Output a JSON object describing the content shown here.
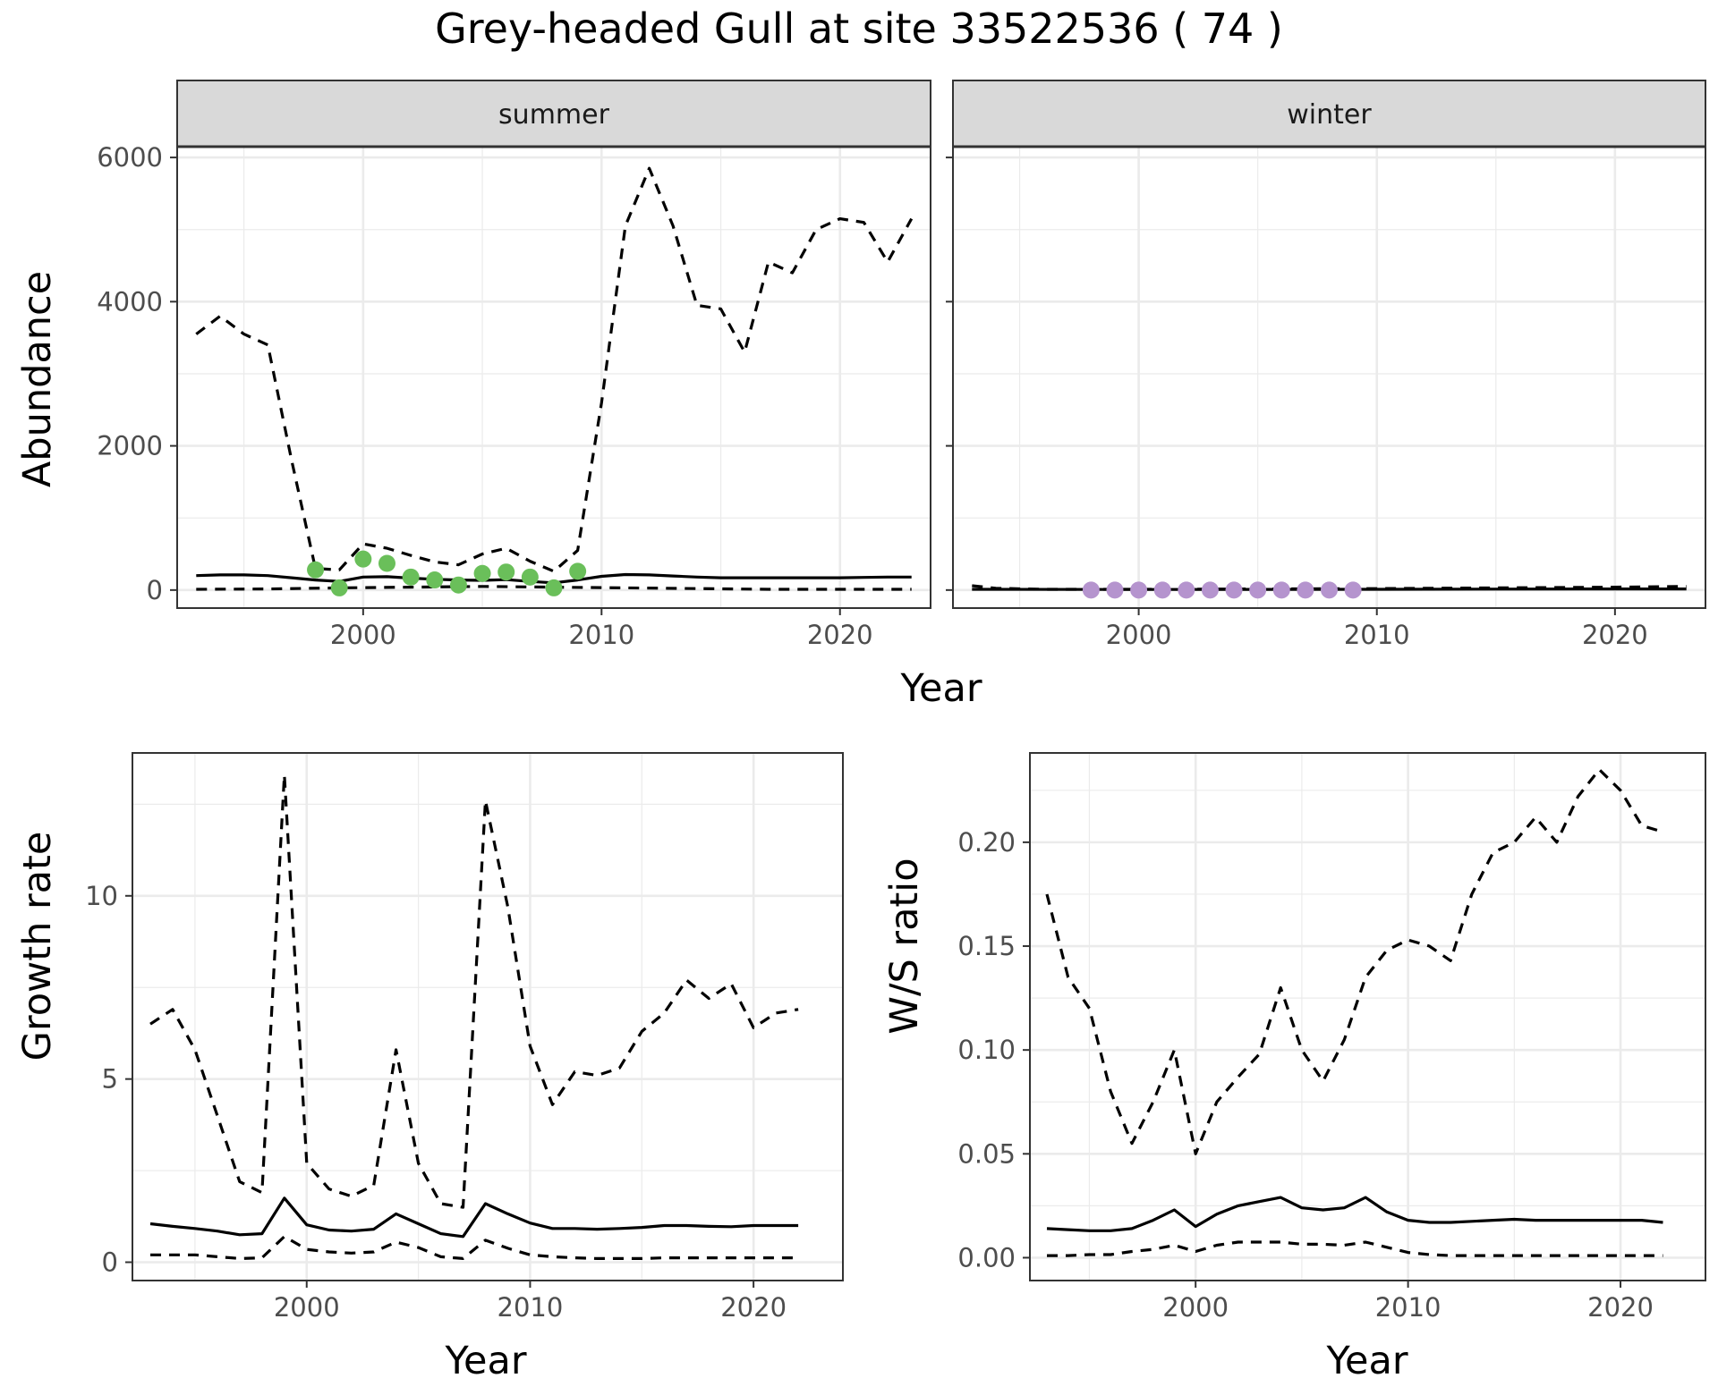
{
  "title": "Grey-headed Gull at site 33522536 ( 74 )",
  "colors": {
    "summer_points": "#6abf5a",
    "winter_points": "#b594ce",
    "line": "#000000",
    "strip_fill": "#d9d9d9",
    "grid": "#ebebeb"
  },
  "chart_data": [
    {
      "type": "line",
      "panel": "summer",
      "strip_label": "summer",
      "xlabel": "Year",
      "ylabel": "Abundance",
      "xlim": [
        1992.2,
        2023.8
      ],
      "ylim": [
        -250,
        6150
      ],
      "xticks": [
        2000,
        2010,
        2020
      ],
      "yticks": [
        0,
        2000,
        4000,
        6000
      ],
      "ytick_labels": [
        "0",
        "2000",
        "4000",
        "6000"
      ],
      "series": [
        {
          "style": "solid",
          "x": [
            1993,
            1994,
            1995,
            1996,
            1997,
            1998,
            1999,
            2000,
            2001,
            2002,
            2003,
            2004,
            2005,
            2006,
            2007,
            2008,
            2009,
            2010,
            2011,
            2012,
            2013,
            2014,
            2015,
            2016,
            2017,
            2018,
            2019,
            2020,
            2021,
            2022,
            2023
          ],
          "y": [
            200,
            210,
            210,
            200,
            170,
            140,
            120,
            180,
            185,
            165,
            150,
            140,
            135,
            145,
            120,
            100,
            140,
            190,
            215,
            210,
            195,
            180,
            170,
            170,
            170,
            170,
            170,
            170,
            175,
            180,
            180
          ]
        },
        {
          "style": "dashed",
          "x": [
            1993,
            1994,
            1995,
            1996,
            1997,
            1998,
            1999,
            2000,
            2001,
            2002,
            2003,
            2004,
            2005,
            2006,
            2007,
            2008,
            2009,
            2010,
            2011,
            2012,
            2013,
            2014,
            2015,
            2016,
            2017,
            2018,
            2019,
            2020,
            2021,
            2022,
            2023
          ],
          "y": [
            3550,
            3800,
            3550,
            3400,
            1800,
            300,
            280,
            640,
            580,
            480,
            390,
            350,
            500,
            580,
            400,
            260,
            550,
            2600,
            5050,
            5850,
            5050,
            3950,
            3900,
            3300,
            4550,
            4400,
            5000,
            5150,
            5100,
            4550,
            5150
          ]
        },
        {
          "style": "dashed",
          "x": [
            1993,
            1996,
            1999,
            2002,
            2005,
            2008,
            2011,
            2014,
            2017,
            2020,
            2023
          ],
          "y": [
            10,
            15,
            30,
            40,
            50,
            40,
            30,
            20,
            10,
            10,
            10
          ]
        }
      ],
      "points": {
        "x": [
          1998,
          1999,
          2000,
          2001,
          2002,
          2003,
          2004,
          2005,
          2006,
          2007,
          2008,
          2009
        ],
        "y": [
          280,
          30,
          430,
          370,
          180,
          140,
          70,
          230,
          250,
          180,
          30,
          260
        ]
      }
    },
    {
      "type": "line",
      "panel": "winter",
      "strip_label": "winter",
      "xlabel": "Year",
      "ylabel": "Abundance",
      "xlim": [
        1992.2,
        2023.8
      ],
      "ylim": [
        -250,
        6150
      ],
      "xticks": [
        2000,
        2010,
        2020
      ],
      "series": [
        {
          "style": "solid",
          "x": [
            1993,
            2000,
            2010,
            2020,
            2023
          ],
          "y": [
            10,
            8,
            10,
            15,
            15
          ]
        },
        {
          "style": "dashed",
          "x": [
            1993,
            1994,
            1996,
            2000,
            2005,
            2010,
            2015,
            2020,
            2023
          ],
          "y": [
            60,
            25,
            10,
            10,
            15,
            20,
            30,
            40,
            50
          ]
        }
      ],
      "points": {
        "x": [
          1998,
          1999,
          2000,
          2001,
          2002,
          2003,
          2004,
          2005,
          2006,
          2007,
          2008,
          2009
        ],
        "y": [
          0,
          0,
          0,
          0,
          0,
          0,
          0,
          0,
          0,
          0,
          0,
          0
        ]
      }
    },
    {
      "type": "line",
      "panel": "growth",
      "xlabel": "Year",
      "ylabel": "Growth rate",
      "xlim": [
        1992.2,
        2024.0
      ],
      "ylim": [
        -0.5,
        13.9
      ],
      "xticks": [
        2000,
        2010,
        2020
      ],
      "yticks": [
        0,
        5,
        10
      ],
      "ytick_labels": [
        "0",
        "5",
        "10"
      ],
      "series": [
        {
          "style": "solid",
          "x": [
            1993,
            1994,
            1995,
            1996,
            1997,
            1998,
            1999,
            2000,
            2001,
            2002,
            2003,
            2004,
            2005,
            2006,
            2007,
            2008,
            2009,
            2010,
            2011,
            2012,
            2013,
            2014,
            2015,
            2016,
            2017,
            2018,
            2019,
            2020,
            2021,
            2022
          ],
          "y": [
            1.05,
            0.98,
            0.92,
            0.85,
            0.75,
            0.78,
            1.75,
            1.02,
            0.88,
            0.85,
            0.9,
            1.32,
            1.05,
            0.78,
            0.7,
            1.6,
            1.32,
            1.07,
            0.92,
            0.92,
            0.9,
            0.92,
            0.95,
            1.0,
            1.0,
            0.98,
            0.97,
            1.0,
            1.0,
            1.0
          ]
        },
        {
          "style": "dashed",
          "x": [
            1993,
            1994,
            1995,
            1996,
            1997,
            1998,
            1999,
            2000,
            2001,
            2002,
            2003,
            2004,
            2005,
            2006,
            2007,
            2008,
            2009,
            2010,
            2011,
            2012,
            2013,
            2014,
            2015,
            2016,
            2017,
            2018,
            2019,
            2020,
            2021,
            2022
          ],
          "y": [
            6.5,
            6.9,
            5.8,
            4.0,
            2.2,
            1.9,
            13.3,
            2.7,
            2.0,
            1.8,
            2.1,
            5.8,
            2.7,
            1.6,
            1.5,
            12.6,
            9.7,
            5.9,
            4.3,
            5.2,
            5.1,
            5.3,
            6.3,
            6.8,
            7.7,
            7.2,
            7.6,
            6.4,
            6.8,
            6.9
          ]
        },
        {
          "style": "dashed",
          "x": [
            1993,
            1994,
            1995,
            1996,
            1997,
            1998,
            1999,
            2000,
            2001,
            2002,
            2003,
            2004,
            2005,
            2006,
            2007,
            2008,
            2009,
            2010,
            2011,
            2012,
            2013,
            2014,
            2015,
            2016,
            2017,
            2018,
            2019,
            2020,
            2021,
            2022
          ],
          "y": [
            0.2,
            0.2,
            0.2,
            0.15,
            0.1,
            0.12,
            0.7,
            0.35,
            0.28,
            0.25,
            0.28,
            0.55,
            0.4,
            0.15,
            0.1,
            0.6,
            0.38,
            0.2,
            0.15,
            0.12,
            0.1,
            0.1,
            0.1,
            0.12,
            0.12,
            0.12,
            0.12,
            0.12,
            0.12,
            0.12
          ]
        }
      ]
    },
    {
      "type": "line",
      "panel": "ratio",
      "xlabel": "Year",
      "ylabel": "W/S ratio",
      "xlim": [
        1992.2,
        2024.0
      ],
      "ylim": [
        -0.011,
        0.243
      ],
      "xticks": [
        2000,
        2010,
        2020
      ],
      "yticks": [
        0.0,
        0.05,
        0.1,
        0.15,
        0.2
      ],
      "ytick_labels": [
        "0.00",
        "0.05",
        "0.10",
        "0.15",
        "0.20"
      ],
      "series": [
        {
          "style": "solid",
          "x": [
            1993,
            1994,
            1995,
            1996,
            1997,
            1998,
            1999,
            2000,
            2001,
            2002,
            2003,
            2004,
            2005,
            2006,
            2007,
            2008,
            2009,
            2010,
            2011,
            2012,
            2013,
            2014,
            2015,
            2016,
            2017,
            2018,
            2019,
            2020,
            2021,
            2022
          ],
          "y": [
            0.014,
            0.0135,
            0.013,
            0.013,
            0.014,
            0.018,
            0.023,
            0.015,
            0.021,
            0.025,
            0.027,
            0.029,
            0.024,
            0.023,
            0.024,
            0.029,
            0.022,
            0.018,
            0.017,
            0.017,
            0.0175,
            0.018,
            0.0185,
            0.018,
            0.018,
            0.018,
            0.018,
            0.018,
            0.018,
            0.017
          ]
        },
        {
          "style": "dashed",
          "x": [
            1993,
            1994,
            1995,
            1996,
            1997,
            1998,
            1999,
            2000,
            2001,
            2002,
            2003,
            2004,
            2005,
            2006,
            2007,
            2008,
            2009,
            2010,
            2011,
            2012,
            2013,
            2014,
            2015,
            2016,
            2017,
            2018,
            2019,
            2020,
            2021,
            2022
          ],
          "y": [
            0.175,
            0.135,
            0.12,
            0.08,
            0.055,
            0.075,
            0.1,
            0.05,
            0.075,
            0.087,
            0.098,
            0.13,
            0.1,
            0.085,
            0.105,
            0.135,
            0.148,
            0.153,
            0.15,
            0.143,
            0.175,
            0.195,
            0.2,
            0.212,
            0.2,
            0.222,
            0.235,
            0.225,
            0.208,
            0.205
          ]
        },
        {
          "style": "dashed",
          "x": [
            1993,
            1994,
            1995,
            1996,
            1997,
            1998,
            1999,
            2000,
            2001,
            2002,
            2003,
            2004,
            2005,
            2006,
            2007,
            2008,
            2009,
            2010,
            2011,
            2012,
            2013,
            2014,
            2015,
            2016,
            2017,
            2018,
            2019,
            2020,
            2021,
            2022
          ],
          "y": [
            0.001,
            0.001,
            0.0015,
            0.0015,
            0.003,
            0.004,
            0.006,
            0.003,
            0.006,
            0.0075,
            0.0075,
            0.0075,
            0.0065,
            0.0065,
            0.006,
            0.0075,
            0.005,
            0.0025,
            0.0015,
            0.001,
            0.001,
            0.001,
            0.001,
            0.001,
            0.001,
            0.001,
            0.001,
            0.001,
            0.001,
            0.001
          ]
        }
      ]
    }
  ]
}
